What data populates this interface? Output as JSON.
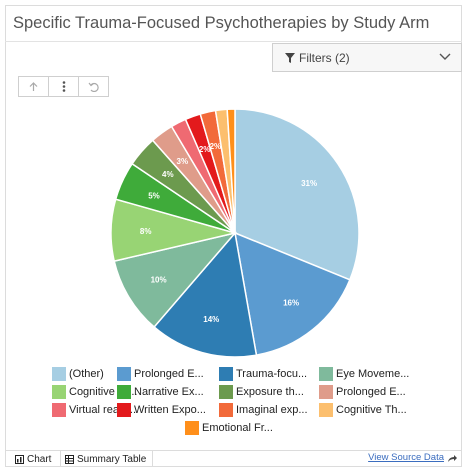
{
  "header": {
    "title": "Specific Trauma-Focused Psychotherapies by Study Arm",
    "filters_label": "Filters (2)"
  },
  "toolbar": {
    "buttons": [
      "arrow-up-icon",
      "vertical-ellipsis-icon",
      "undo-icon"
    ]
  },
  "chart_data": {
    "type": "pie",
    "title": "",
    "slices": [
      {
        "label": "(Other)",
        "value": 31,
        "display": "31%",
        "color": "#a6cee3"
      },
      {
        "label": "Prolonged E...",
        "value": 16,
        "display": "16%",
        "color": "#5b9bd0"
      },
      {
        "label": "Trauma-focu...",
        "value": 14,
        "display": "14%",
        "color": "#2e7db3"
      },
      {
        "label": "Eye Moveme...",
        "value": 10,
        "display": "10%",
        "color": "#7fba9c"
      },
      {
        "label": "Cognitive Pr...",
        "value": 8,
        "display": "8%",
        "color": "#98d474"
      },
      {
        "label": "Narrative Ex...",
        "value": 5,
        "display": "5%",
        "color": "#3fab3a"
      },
      {
        "label": "Exposure th...",
        "value": 4,
        "display": "4%",
        "color": "#6c9a4e"
      },
      {
        "label": "Prolonged E...",
        "value": 3,
        "display": "3%",
        "color": "#df9c8a"
      },
      {
        "label": "Virtual realit...",
        "value": 2,
        "display": "",
        "color": "#ef6a72"
      },
      {
        "label": "Written Expo...",
        "value": 2,
        "display": "2%",
        "color": "#e31a1c"
      },
      {
        "label": "Imaginal exp...",
        "value": 2,
        "display": "2%",
        "color": "#f26a3a"
      },
      {
        "label": "Cognitive Th...",
        "value": 1.5,
        "display": "",
        "color": "#fcbf6e"
      },
      {
        "label": "Emotional Fr...",
        "value": 1,
        "display": "",
        "color": "#ff8f1a"
      }
    ],
    "start_angle_deg": 0,
    "direction": "clockwise",
    "legend_position": "bottom"
  },
  "legend": {
    "rows": [
      [
        "(Other)",
        "Prolonged E...",
        "Trauma-focu...",
        "Eye Moveme..."
      ],
      [
        "Cognitive Pr...",
        "Narrative Ex...",
        "Exposure th...",
        "Prolonged E..."
      ],
      [
        "Virtual realit...",
        "Written Expo...",
        "Imaginal exp...",
        "Cognitive Th..."
      ],
      [
        "Emotional Fr..."
      ]
    ]
  },
  "footer": {
    "chart_tab": "Chart",
    "table_tab": "Summary Table",
    "source_link": "View Source Data"
  }
}
